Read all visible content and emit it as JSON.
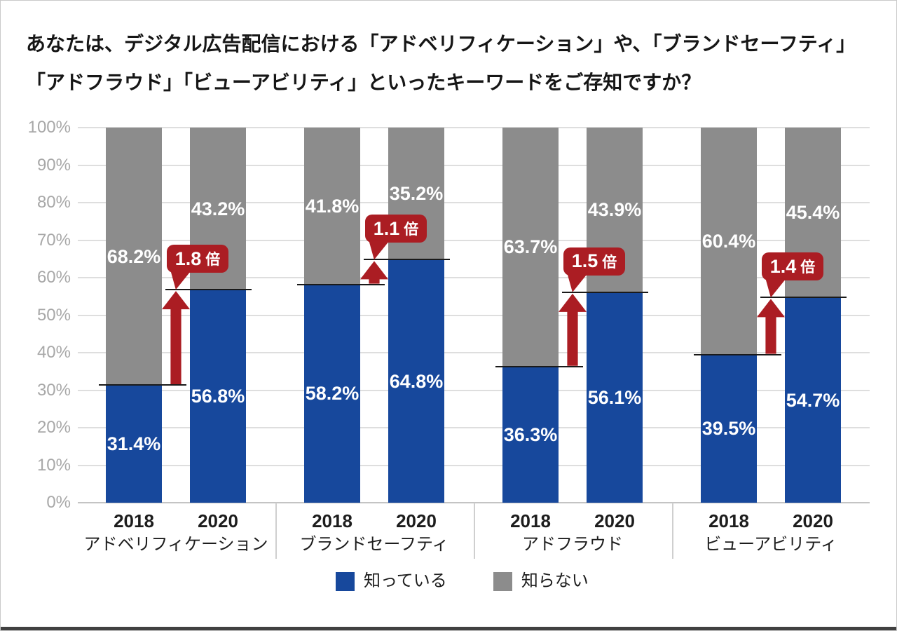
{
  "title": {
    "line1": "あなたは、デジタル広告配信における「アドベリフィケーション」や、「ブランドセーフティ」",
    "line2": "「アドフラウド」「ビューアビリティ」といったキーワードをご存知ですか？"
  },
  "chart_data": {
    "type": "bar",
    "stacked": true,
    "title": "あなたは、デジタル広告配信における「アドベリフィケーション」や、「ブランドセーフティ」「アドフラウド」「ビューアビリティ」といったキーワードをご存知ですか？",
    "ylim": [
      0,
      100
    ],
    "unit": "%",
    "grid": true,
    "legend_position": "bottom",
    "y_ticks": [
      "0%",
      "10%",
      "20%",
      "30%",
      "40%",
      "50%",
      "60%",
      "70%",
      "80%",
      "90%",
      "100%"
    ],
    "categories": [
      "アドベリフィケーション",
      "ブランドセーフティ",
      "アドフラウド",
      "ビューアビリティ"
    ],
    "years": [
      "2018",
      "2020"
    ],
    "series": [
      {
        "name": "知っている",
        "year": "2018",
        "values": [
          31.4,
          58.2,
          36.3,
          39.5
        ]
      },
      {
        "name": "知らない",
        "year": "2018",
        "values": [
          68.2,
          41.8,
          63.7,
          60.4
        ]
      },
      {
        "name": "知っている",
        "year": "2020",
        "values": [
          56.8,
          64.8,
          56.1,
          54.7
        ]
      },
      {
        "name": "知らない",
        "year": "2020",
        "values": [
          43.2,
          35.2,
          43.9,
          45.4
        ]
      }
    ],
    "multipliers": [
      {
        "value": "1.8",
        "unit": "倍"
      },
      {
        "value": "1.1",
        "unit": "倍"
      },
      {
        "value": "1.5",
        "unit": "倍"
      },
      {
        "value": "1.4",
        "unit": "倍"
      }
    ],
    "legend": [
      {
        "label": "知っている",
        "key": "know"
      },
      {
        "label": "知らない",
        "key": "dont"
      }
    ],
    "colors": {
      "know": "#17489c",
      "dont": "#8c8c8c",
      "badge": "#ab1d23",
      "gridline": "#dedede",
      "axis_line": "#c4c4c4",
      "tick_text": "#a8a8a8",
      "level_line": "#1a1a1a"
    }
  }
}
